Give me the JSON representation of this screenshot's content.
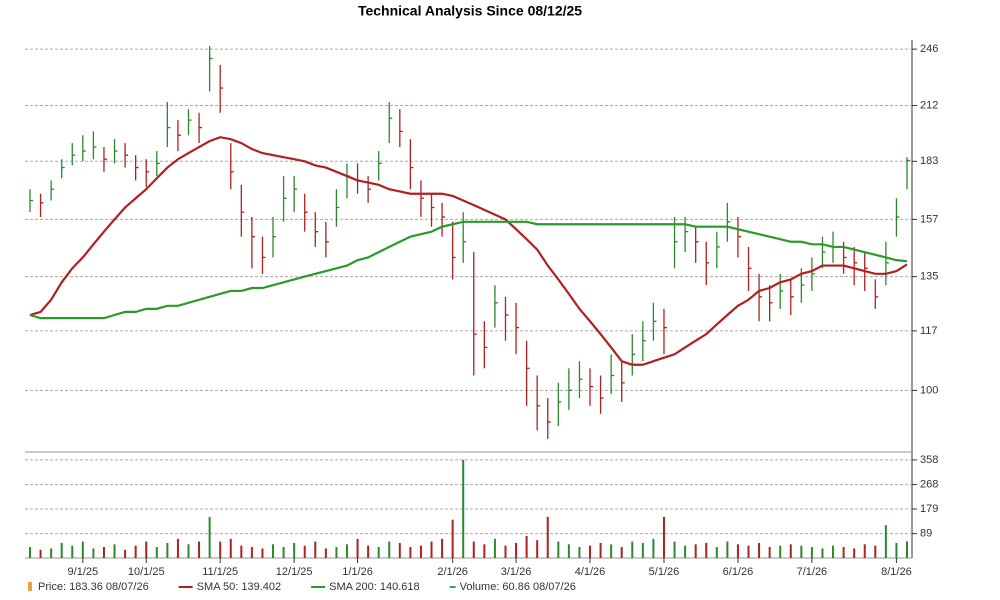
{
  "chart_data": [
    {
      "type": "ohlc",
      "title": "Technical Analysis Since 08/12/25",
      "categories": [
        null,
        null,
        null,
        null,
        null,
        "9/1/25",
        null,
        null,
        null,
        null,
        null,
        "10/1/25",
        null,
        null,
        null,
        null,
        null,
        null,
        "11/1/25",
        null,
        null,
        null,
        null,
        null,
        null,
        "12/1/25",
        null,
        null,
        null,
        null,
        null,
        "1/1/26",
        null,
        null,
        null,
        null,
        null,
        null,
        null,
        null,
        "2/1/26",
        null,
        null,
        null,
        null,
        null,
        "3/1/26",
        null,
        null,
        null,
        null,
        null,
        null,
        "4/1/26",
        null,
        null,
        null,
        null,
        null,
        null,
        "5/1/26",
        null,
        null,
        null,
        null,
        null,
        null,
        "6/1/26",
        null,
        null,
        null,
        null,
        null,
        null,
        "7/1/26",
        null,
        null,
        null,
        null,
        null,
        null,
        null,
        "8/1/26",
        null
      ],
      "close": [
        165,
        164,
        170,
        180,
        186,
        188,
        190,
        184,
        188,
        186,
        180,
        178,
        182,
        200,
        196,
        204,
        200,
        240,
        222,
        178,
        160,
        150,
        142,
        150,
        166,
        170,
        160,
        152,
        148,
        162,
        176,
        174,
        170,
        182,
        205,
        198,
        180,
        166,
        162,
        158,
        142,
        148,
        116,
        112,
        126,
        122,
        118,
        106,
        96,
        92,
        97,
        100,
        103,
        101,
        98,
        104,
        102,
        110,
        114,
        120,
        118,
        148,
        152,
        148,
        140,
        146,
        156,
        150,
        138,
        128,
        126,
        130,
        128,
        132,
        136,
        144,
        146,
        142,
        140,
        138,
        128,
        140,
        158,
        183.36
      ],
      "high": [
        170,
        168,
        174,
        184,
        192,
        196,
        198,
        190,
        194,
        192,
        186,
        184,
        188,
        214,
        204,
        210,
        208,
        248,
        236,
        192,
        172,
        158,
        150,
        158,
        176,
        176,
        168,
        160,
        156,
        170,
        182,
        182,
        176,
        188,
        214,
        210,
        194,
        174,
        168,
        164,
        156,
        160,
        144,
        120,
        132,
        128,
        126,
        114,
        104,
        98,
        102,
        106,
        108,
        106,
        104,
        110,
        108,
        116,
        120,
        126,
        124,
        158,
        158,
        154,
        148,
        152,
        164,
        158,
        146,
        136,
        132,
        136,
        134,
        138,
        142,
        150,
        152,
        148,
        146,
        144,
        134,
        148,
        166,
        185
      ],
      "low": [
        160,
        158,
        165,
        175,
        181,
        183,
        184,
        178,
        182,
        180,
        174,
        171,
        176,
        190,
        188,
        196,
        192,
        220,
        208,
        170,
        150,
        138,
        136,
        142,
        156,
        160,
        152,
        146,
        142,
        154,
        166,
        168,
        164,
        174,
        192,
        190,
        170,
        158,
        154,
        150,
        134,
        140,
        104,
        106,
        118,
        114,
        110,
        96,
        90,
        88,
        91,
        95,
        98,
        96,
        94,
        99,
        97,
        104,
        108,
        114,
        110,
        138,
        144,
        140,
        132,
        138,
        148,
        142,
        130,
        120,
        120,
        124,
        122,
        126,
        130,
        138,
        140,
        136,
        132,
        130,
        124,
        132,
        150,
        170
      ],
      "up_color": "#2a8a2a",
      "down_color": "#b02020",
      "price_label": "Price: 183.36  08/07/26",
      "price_color": "#e8a040",
      "series": [
        {
          "name": "SMA 50: 139.402",
          "color": "#b02020",
          "values": [
            122,
            123,
            127,
            133,
            138,
            142,
            147,
            152,
            157,
            162,
            166,
            170,
            175,
            180,
            184,
            187,
            190,
            193,
            195,
            194,
            192,
            189,
            187,
            186,
            185,
            184,
            183,
            181,
            180,
            178,
            176,
            174,
            173,
            172,
            170,
            169,
            168,
            168,
            168,
            168,
            167,
            165,
            163,
            161,
            159,
            157,
            153,
            149,
            145,
            139,
            134,
            129,
            124,
            120,
            116,
            112,
            108,
            107,
            107,
            108,
            109,
            110,
            112,
            114,
            116,
            119,
            122,
            125,
            127,
            130,
            131,
            133,
            134,
            136,
            137,
            139,
            139,
            139,
            138,
            137,
            136,
            136,
            137,
            139.402
          ]
        },
        {
          "name": "SMA 200: 140.618",
          "color": "#2a9a2a",
          "values": [
            122,
            121,
            121,
            121,
            121,
            121,
            121,
            121,
            122,
            123,
            123,
            124,
            124,
            125,
            125,
            126,
            127,
            128,
            129,
            130,
            130,
            131,
            131,
            132,
            133,
            134,
            135,
            136,
            137,
            138,
            139,
            141,
            142,
            144,
            146,
            148,
            150,
            151,
            152,
            154,
            155,
            156,
            156,
            156,
            156,
            156,
            156,
            156,
            155,
            155,
            155,
            155,
            155,
            155,
            155,
            155,
            155,
            155,
            155,
            155,
            155,
            155,
            155,
            154,
            154,
            154,
            154,
            153,
            152,
            151,
            150,
            149,
            148,
            148,
            147,
            147,
            146,
            146,
            145,
            144,
            143,
            142,
            141,
            140.618
          ]
        }
      ],
      "log": true,
      "ylim": [
        85,
        252
      ],
      "yticks": [
        100,
        117,
        135,
        157,
        183,
        212,
        246
      ],
      "grid": true
    },
    {
      "type": "bar",
      "name": "Volume: 60.86  08/07/26",
      "color": "#20a0a0",
      "values": [
        40,
        30,
        35,
        55,
        45,
        60,
        35,
        40,
        50,
        30,
        45,
        60,
        40,
        55,
        70,
        50,
        60,
        150,
        60,
        70,
        45,
        40,
        35,
        50,
        40,
        55,
        45,
        60,
        35,
        40,
        50,
        70,
        45,
        40,
        60,
        55,
        40,
        45,
        60,
        70,
        140,
        358,
        60,
        50,
        70,
        45,
        55,
        80,
        65,
        150,
        60,
        50,
        40,
        45,
        55,
        50,
        40,
        60,
        55,
        70,
        150,
        60,
        45,
        50,
        55,
        40,
        60,
        50,
        45,
        55,
        40,
        45,
        50,
        45,
        40,
        35,
        45,
        40,
        35,
        50,
        45,
        120,
        55,
        60.86
      ],
      "ylim": [
        0,
        376
      ],
      "yticks": [
        89,
        179,
        268,
        358
      ],
      "grid": true
    }
  ]
}
